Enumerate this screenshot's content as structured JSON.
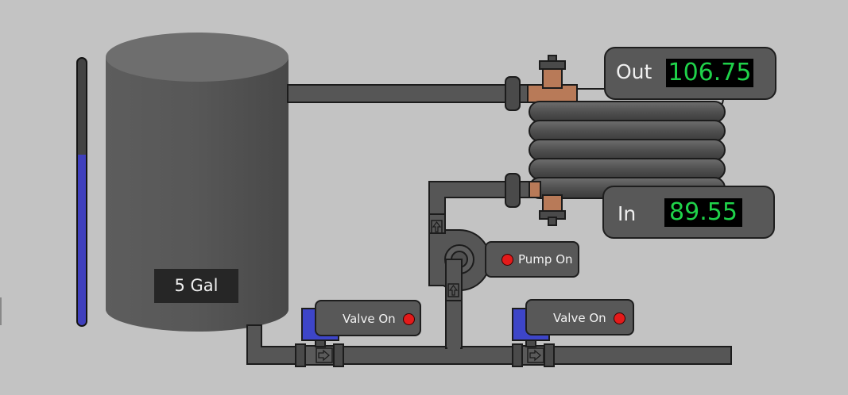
{
  "tank": {
    "volume_label": "5 Gal",
    "level_fraction": 0.64
  },
  "outlet_temp": {
    "label": "Out",
    "value": "106.75"
  },
  "inlet_temp": {
    "label": "In",
    "value": "89.55"
  },
  "pump": {
    "status_label": "Pump On",
    "indicator_color": "#e41a1a"
  },
  "valves": [
    {
      "status_label": "Valve On",
      "indicator_color": "#e41a1a"
    },
    {
      "status_label": "Valve On",
      "indicator_color": "#e41a1a"
    }
  ],
  "colors": {
    "pipe": "#565656",
    "copper": "#b87a58",
    "water_level": "#3f3fbd",
    "actuator": "#3d45c8"
  }
}
